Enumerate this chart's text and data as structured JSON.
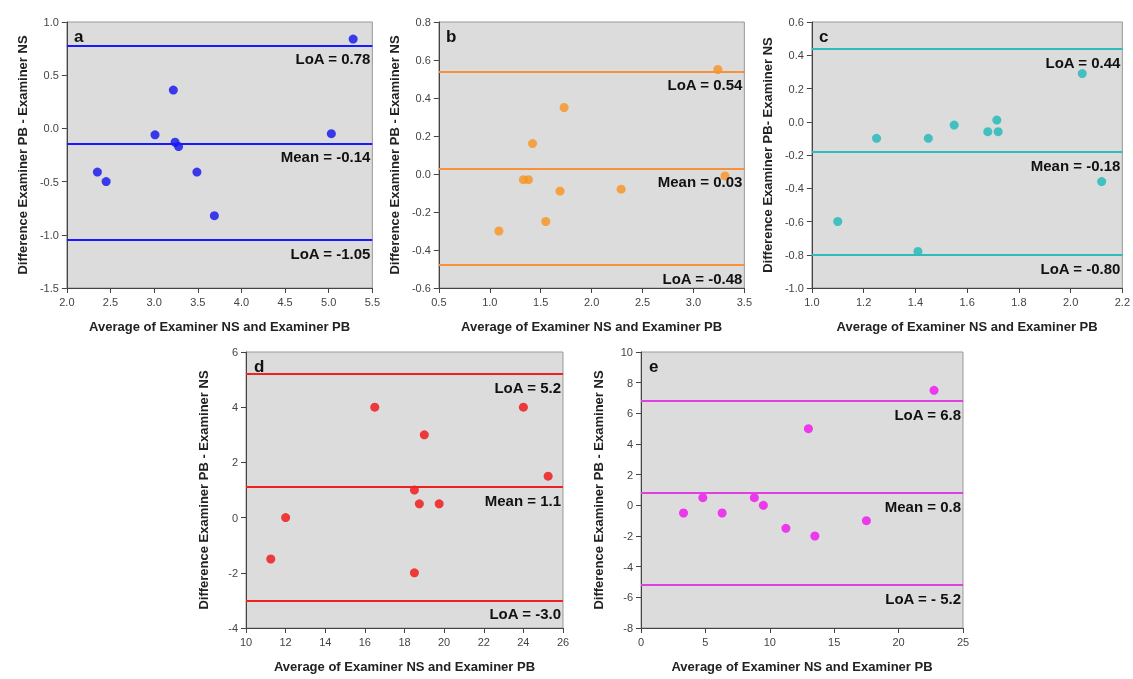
{
  "chart_data": [
    {
      "type": "scatter",
      "title": "a",
      "xlabel": "Average of Examiner NS and Examiner PB",
      "ylabel": "Difference Examiner PB - Examiner NS",
      "xlim": [
        2,
        5.5
      ],
      "xticks": [
        {
          "value": 2,
          "label": "2.0"
        },
        2.5,
        {
          "value": 3,
          "label": "3.0"
        },
        3.5,
        {
          "value": 4,
          "label": "4.0"
        },
        4.5,
        {
          "value": 5,
          "label": "5.0"
        },
        5.5
      ],
      "ylim": [
        -1.5,
        1
      ],
      "yticks": [
        -1.5,
        {
          "value": -1,
          "label": "-1.0"
        },
        -0.5,
        {
          "value": 0,
          "label": "0.0"
        },
        0.5,
        {
          "value": 1,
          "label": "1.0"
        }
      ],
      "grid": false,
      "marker": "circle",
      "series": [
        {
          "color": "#1010ee",
          "x": [
            2.35,
            2.45,
            3.01,
            3.22,
            3.24,
            3.28,
            3.49,
            3.69,
            5.03,
            5.28
          ],
          "values": [
            -0.41,
            -0.5,
            -0.06,
            0.36,
            -0.13,
            -0.17,
            -0.41,
            -0.82,
            -0.05,
            0.84
          ]
        }
      ],
      "ref_lines": [
        {
          "axis": "y",
          "value": 0.78,
          "label": "LoA = 0.78",
          "color": "#1a1aff"
        },
        {
          "axis": "y",
          "value": -0.14,
          "label": "Mean = -0.14",
          "color": "#1a1aff"
        },
        {
          "axis": "y",
          "value": -1.05,
          "label": "LoA = -1.05",
          "color": "#1a1aff"
        }
      ]
    },
    {
      "type": "scatter",
      "title": "b",
      "xlabel": "Average of Examiner NS and Examiner PB",
      "ylabel": "Difference Examiner PB - Examiner NS",
      "xlim": [
        0.5,
        3.5
      ],
      "xticks": [
        0.5,
        {
          "value": 1,
          "label": "1.0"
        },
        1.5,
        {
          "value": 2,
          "label": "2.0"
        },
        2.5,
        {
          "value": 3,
          "label": "3.0"
        },
        3.5
      ],
      "ylim": [
        -0.6,
        0.8
      ],
      "yticks": [
        -0.6,
        -0.4,
        -0.2,
        {
          "value": 0,
          "label": "0.0"
        },
        0.2,
        0.4,
        0.6,
        0.8
      ],
      "grid": false,
      "marker": "circle",
      "series": [
        {
          "color": "#f7921e",
          "x": [
            1.09,
            1.33,
            1.38,
            1.42,
            1.55,
            1.69,
            1.73,
            2.29,
            3.24,
            3.31
          ],
          "values": [
            -0.3,
            -0.03,
            -0.03,
            0.16,
            -0.25,
            -0.09,
            0.35,
            -0.08,
            0.55,
            -0.01
          ]
        }
      ],
      "ref_lines": [
        {
          "axis": "y",
          "value": 0.54,
          "label": "LoA = 0.54",
          "color": "#f7923a"
        },
        {
          "axis": "y",
          "value": 0.03,
          "label": "Mean = 0.03",
          "color": "#f7923a"
        },
        {
          "axis": "y",
          "value": -0.48,
          "label": "LoA = -0.48",
          "color": "#f7923a"
        }
      ]
    },
    {
      "type": "scatter",
      "title": "c",
      "xlabel": "Average of Examiner NS and Examiner PB",
      "ylabel": "Difference Examiner PB- Examiner NS",
      "xlim": [
        1,
        2.2
      ],
      "xticks": [
        {
          "value": 1,
          "label": "1.0"
        },
        1.2,
        1.4,
        1.6,
        1.8,
        {
          "value": 2,
          "label": "2.0"
        },
        2.2
      ],
      "ylim": [
        -1,
        0.6
      ],
      "yticks": [
        {
          "value": -1,
          "label": "-1.0"
        },
        -0.8,
        -0.6,
        -0.4,
        -0.2,
        {
          "value": 0,
          "label": "0.0"
        },
        0.2,
        0.4,
        0.6
      ],
      "grid": false,
      "marker": "circle",
      "series": [
        {
          "color": "#1db8b8",
          "x": [
            1.1,
            1.25,
            1.41,
            1.45,
            1.55,
            1.68,
            1.715,
            1.72,
            2.045,
            2.12
          ],
          "values": [
            -0.6,
            -0.1,
            -0.78,
            -0.1,
            -0.02,
            -0.06,
            0.01,
            -0.06,
            0.29,
            -0.36
          ]
        }
      ],
      "ref_lines": [
        {
          "axis": "y",
          "value": 0.44,
          "label": "LoA = 0.44",
          "color": "#2fbcbc"
        },
        {
          "axis": "y",
          "value": -0.18,
          "label": "Mean = -0.18",
          "color": "#2fbcbc"
        },
        {
          "axis": "y",
          "value": -0.8,
          "label": "LoA = -0.80",
          "color": "#2fbcbc"
        }
      ]
    },
    {
      "type": "scatter",
      "title": "d",
      "xlabel": "Average of Examiner NS and Examiner PB",
      "ylabel": "Difference Examiner PB - Examiner NS",
      "xlim": [
        10,
        26
      ],
      "xticks": [
        10,
        12,
        14,
        16,
        18,
        20,
        22,
        24,
        26
      ],
      "ylim": [
        -4,
        6
      ],
      "yticks": [
        -4,
        -2,
        0,
        2,
        4,
        6
      ],
      "grid": false,
      "marker": "circle",
      "series": [
        {
          "color": "#f01010",
          "x": [
            11.25,
            12,
            16.5,
            18.5,
            18.5,
            18.75,
            19,
            19.75,
            24,
            25.25
          ],
          "values": [
            -1.5,
            0,
            4,
            1,
            -2,
            0.5,
            3,
            0.5,
            4,
            1.5
          ]
        }
      ],
      "ref_lines": [
        {
          "axis": "y",
          "value": 5.2,
          "label": "LoA = 5.2",
          "color": "#ee2222"
        },
        {
          "axis": "y",
          "value": 1.1,
          "label": "Mean = 1.1",
          "color": "#ee2222"
        },
        {
          "axis": "y",
          "value": -3,
          "label": "LoA = -3.0",
          "color": "#ee2222"
        }
      ]
    },
    {
      "type": "scatter",
      "title": "e",
      "xlabel": "Average of Examiner NS and Examiner PB",
      "ylabel": "Difference Examiner PB - Examiner NS",
      "xlim": [
        0,
        25
      ],
      "xticks": [
        0,
        5,
        10,
        15,
        20,
        25
      ],
      "ylim": [
        -8,
        10
      ],
      "yticks": [
        -8,
        -6,
        -4,
        -2,
        0,
        2,
        4,
        6,
        8,
        10
      ],
      "grid": false,
      "marker": "circle",
      "series": [
        {
          "color": "#f010f0",
          "x": [
            3.3,
            4.8,
            6.3,
            8.8,
            9.5,
            11.25,
            13,
            13.5,
            17.5,
            22.75
          ],
          "values": [
            -0.5,
            0.5,
            -0.5,
            0.5,
            0,
            -1.5,
            5,
            -2,
            -1,
            7.5
          ]
        }
      ],
      "ref_lines": [
        {
          "axis": "y",
          "value": 6.8,
          "label": "LoA = 6.8",
          "color": "#e040e0"
        },
        {
          "axis": "y",
          "value": 0.8,
          "label": "Mean = 0.8",
          "color": "#e040e0"
        },
        {
          "axis": "y",
          "value": -5.2,
          "label": "LoA = - 5.2",
          "color": "#e040e0"
        }
      ]
    }
  ]
}
